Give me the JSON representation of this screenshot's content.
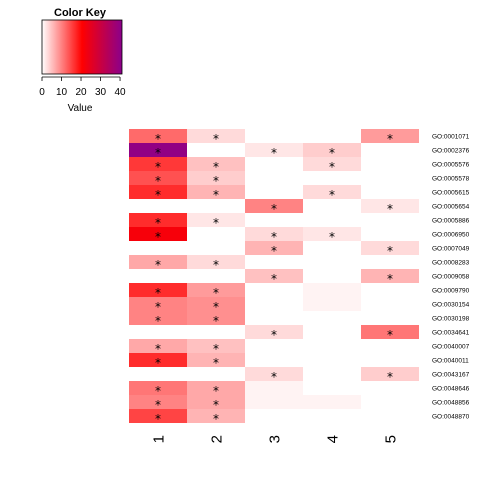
{
  "chart_data": {
    "type": "heatmap",
    "color_key": {
      "title": "Color Key",
      "xlabel": "Value",
      "ticks": [
        "0",
        "10",
        "20",
        "30",
        "40"
      ],
      "range": [
        0,
        41
      ],
      "colors": [
        "#ffffff",
        "#ff0000",
        "#8b008b"
      ]
    },
    "columns": [
      "1",
      "2",
      "3",
      "4",
      "5"
    ],
    "rows": [
      "GO:0001071",
      "GO:0002376",
      "GO:0005576",
      "GO:0005578",
      "GO:0005615",
      "GO:0005654",
      "GO:0005886",
      "GO:0006950",
      "GO:0007049",
      "GO:0008283",
      "GO:0009058",
      "GO:0009790",
      "GO:0030154",
      "GO:0030198",
      "GO:0034641",
      "GO:0040007",
      "GO:0040011",
      "GO:0043167",
      "GO:0048646",
      "GO:0048856",
      "GO:0048870"
    ],
    "values": [
      [
        12,
        3,
        0,
        0,
        8
      ],
      [
        40,
        0,
        2,
        4,
        0
      ],
      [
        16,
        5,
        0,
        3,
        0
      ],
      [
        14,
        4,
        0,
        0,
        0
      ],
      [
        17,
        6,
        0,
        3,
        0
      ],
      [
        0,
        0,
        10,
        0,
        2
      ],
      [
        17,
        2,
        0,
        0,
        0
      ],
      [
        22,
        0,
        3,
        2,
        0
      ],
      [
        0,
        0,
        6,
        0,
        3
      ],
      [
        7,
        3,
        0,
        0,
        0
      ],
      [
        0,
        0,
        5,
        0,
        6
      ],
      [
        17,
        8,
        0,
        1,
        0
      ],
      [
        10,
        9,
        0,
        1,
        0
      ],
      [
        10,
        9,
        0,
        0,
        0
      ],
      [
        0,
        0,
        3,
        0,
        11
      ],
      [
        7,
        5,
        0,
        0,
        0
      ],
      [
        17,
        6,
        0,
        0,
        0
      ],
      [
        0,
        0,
        3,
        0,
        4
      ],
      [
        11,
        7,
        1,
        0,
        0
      ],
      [
        10,
        7,
        1,
        1,
        0
      ],
      [
        15,
        6,
        0,
        0,
        0
      ]
    ],
    "significant": [
      [
        1,
        1,
        0,
        0,
        1
      ],
      [
        1,
        0,
        1,
        1,
        0
      ],
      [
        1,
        1,
        0,
        1,
        0
      ],
      [
        1,
        1,
        0,
        0,
        0
      ],
      [
        1,
        1,
        0,
        1,
        0
      ],
      [
        0,
        0,
        1,
        0,
        1
      ],
      [
        1,
        1,
        0,
        0,
        0
      ],
      [
        1,
        0,
        1,
        1,
        0
      ],
      [
        0,
        0,
        1,
        0,
        1
      ],
      [
        1,
        1,
        0,
        0,
        0
      ],
      [
        0,
        0,
        1,
        0,
        1
      ],
      [
        1,
        1,
        0,
        0,
        0
      ],
      [
        1,
        1,
        0,
        0,
        0
      ],
      [
        1,
        1,
        0,
        0,
        0
      ],
      [
        0,
        0,
        1,
        0,
        1
      ],
      [
        1,
        1,
        0,
        0,
        0
      ],
      [
        1,
        1,
        0,
        0,
        0
      ],
      [
        0,
        0,
        1,
        0,
        1
      ],
      [
        1,
        1,
        0,
        0,
        0
      ],
      [
        1,
        1,
        0,
        0,
        0
      ],
      [
        1,
        1,
        0,
        0,
        0
      ]
    ],
    "marker": "*"
  }
}
